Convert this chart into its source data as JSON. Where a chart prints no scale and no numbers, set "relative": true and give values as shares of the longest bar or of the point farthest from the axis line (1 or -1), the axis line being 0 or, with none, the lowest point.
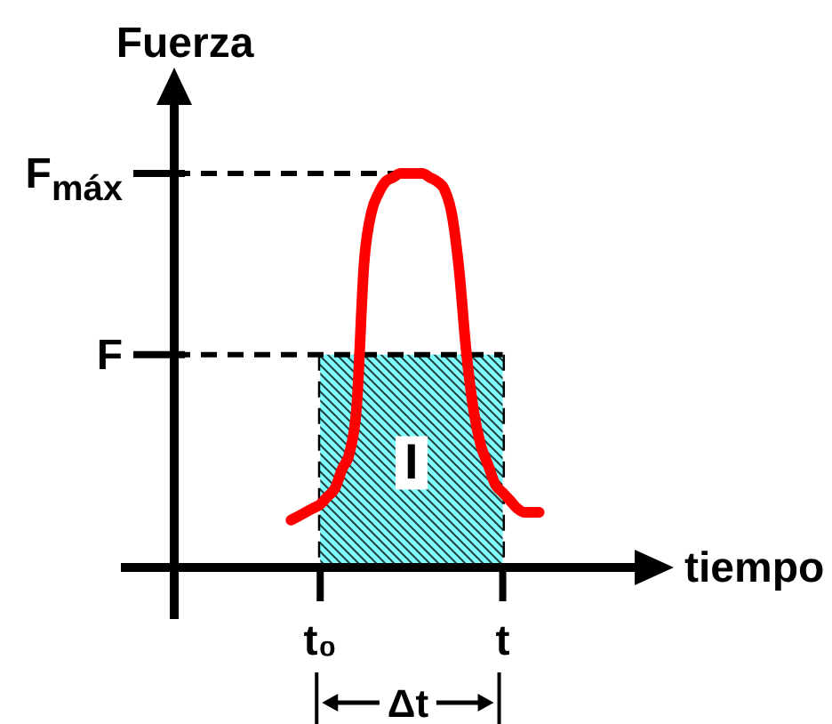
{
  "chart_data": {
    "type": "line",
    "relative": true,
    "xlabel": "tiempo",
    "ylabel": "Fuerza",
    "categories": [
      null,
      null,
      null,
      null,
      null,
      null,
      null,
      null,
      null,
      null,
      null,
      null,
      null,
      null,
      null,
      null,
      null,
      null,
      null,
      null,
      "t₀",
      null,
      null,
      null,
      null,
      null,
      null,
      null,
      null,
      null,
      null,
      null,
      null,
      null,
      null,
      null,
      null,
      null,
      null,
      null,
      null,
      null,
      null,
      null,
      null,
      "t",
      null,
      null,
      null,
      null,
      null,
      null,
      null,
      null,
      null,
      null,
      null,
      null,
      null,
      null,
      null,
      null,
      null,
      null,
      null,
      null,
      null
    ],
    "series": [
      {
        "type": "area",
        "color": "#80ffff",
        "values": [
          null,
          null,
          null,
          null,
          null,
          null,
          null,
          null,
          null,
          null,
          null,
          null,
          null,
          null,
          null,
          null,
          null,
          null,
          null,
          null,
          0.54,
          0.54,
          0.54,
          0.54,
          0.54,
          0.54,
          0.54,
          0.54,
          0.54,
          0.54,
          0.54,
          0.54,
          0.54,
          0.54,
          0.54,
          0.54,
          0.54,
          0.54,
          0.54,
          0.54,
          0.54,
          0.54,
          0.54,
          0.54,
          0.54,
          0.54,
          null,
          null,
          null,
          null,
          null,
          null,
          null,
          null,
          null,
          null,
          null,
          null,
          null,
          null,
          null,
          null,
          null,
          null,
          null,
          null,
          null
        ]
      },
      {
        "color": "#ff0000",
        "values": [
          null,
          null,
          null,
          null,
          null,
          null,
          null,
          null,
          null,
          null,
          null,
          null,
          null,
          null,
          null,
          null,
          0.12,
          0.13,
          0.14,
          0.15,
          0.16,
          0.18,
          0.2,
          0.25,
          0.29,
          0.41,
          0.77,
          0.9,
          0.95,
          0.98,
          0.99,
          1,
          1,
          1,
          1,
          0.99,
          0.98,
          0.96,
          0.9,
          0.76,
          0.55,
          0.4,
          0.31,
          0.26,
          0.21,
          0.19,
          0.17,
          0.15,
          0.14,
          0.14,
          0.14,
          null,
          null,
          null,
          null,
          null,
          null,
          null,
          null,
          null,
          null,
          null,
          null,
          null,
          null,
          null,
          null
        ]
      }
    ],
    "ref_lines": [
      {
        "axis": "y",
        "value": 1,
        "label": "F$_{máx}$",
        "line_style": "dashed",
        "color": "#000000"
      },
      {
        "axis": "y",
        "value": 0.54,
        "label": "F",
        "line_style": "dashed",
        "color": "#000000"
      }
    ],
    "annotations": [
      "I",
      "Δt"
    ]
  }
}
